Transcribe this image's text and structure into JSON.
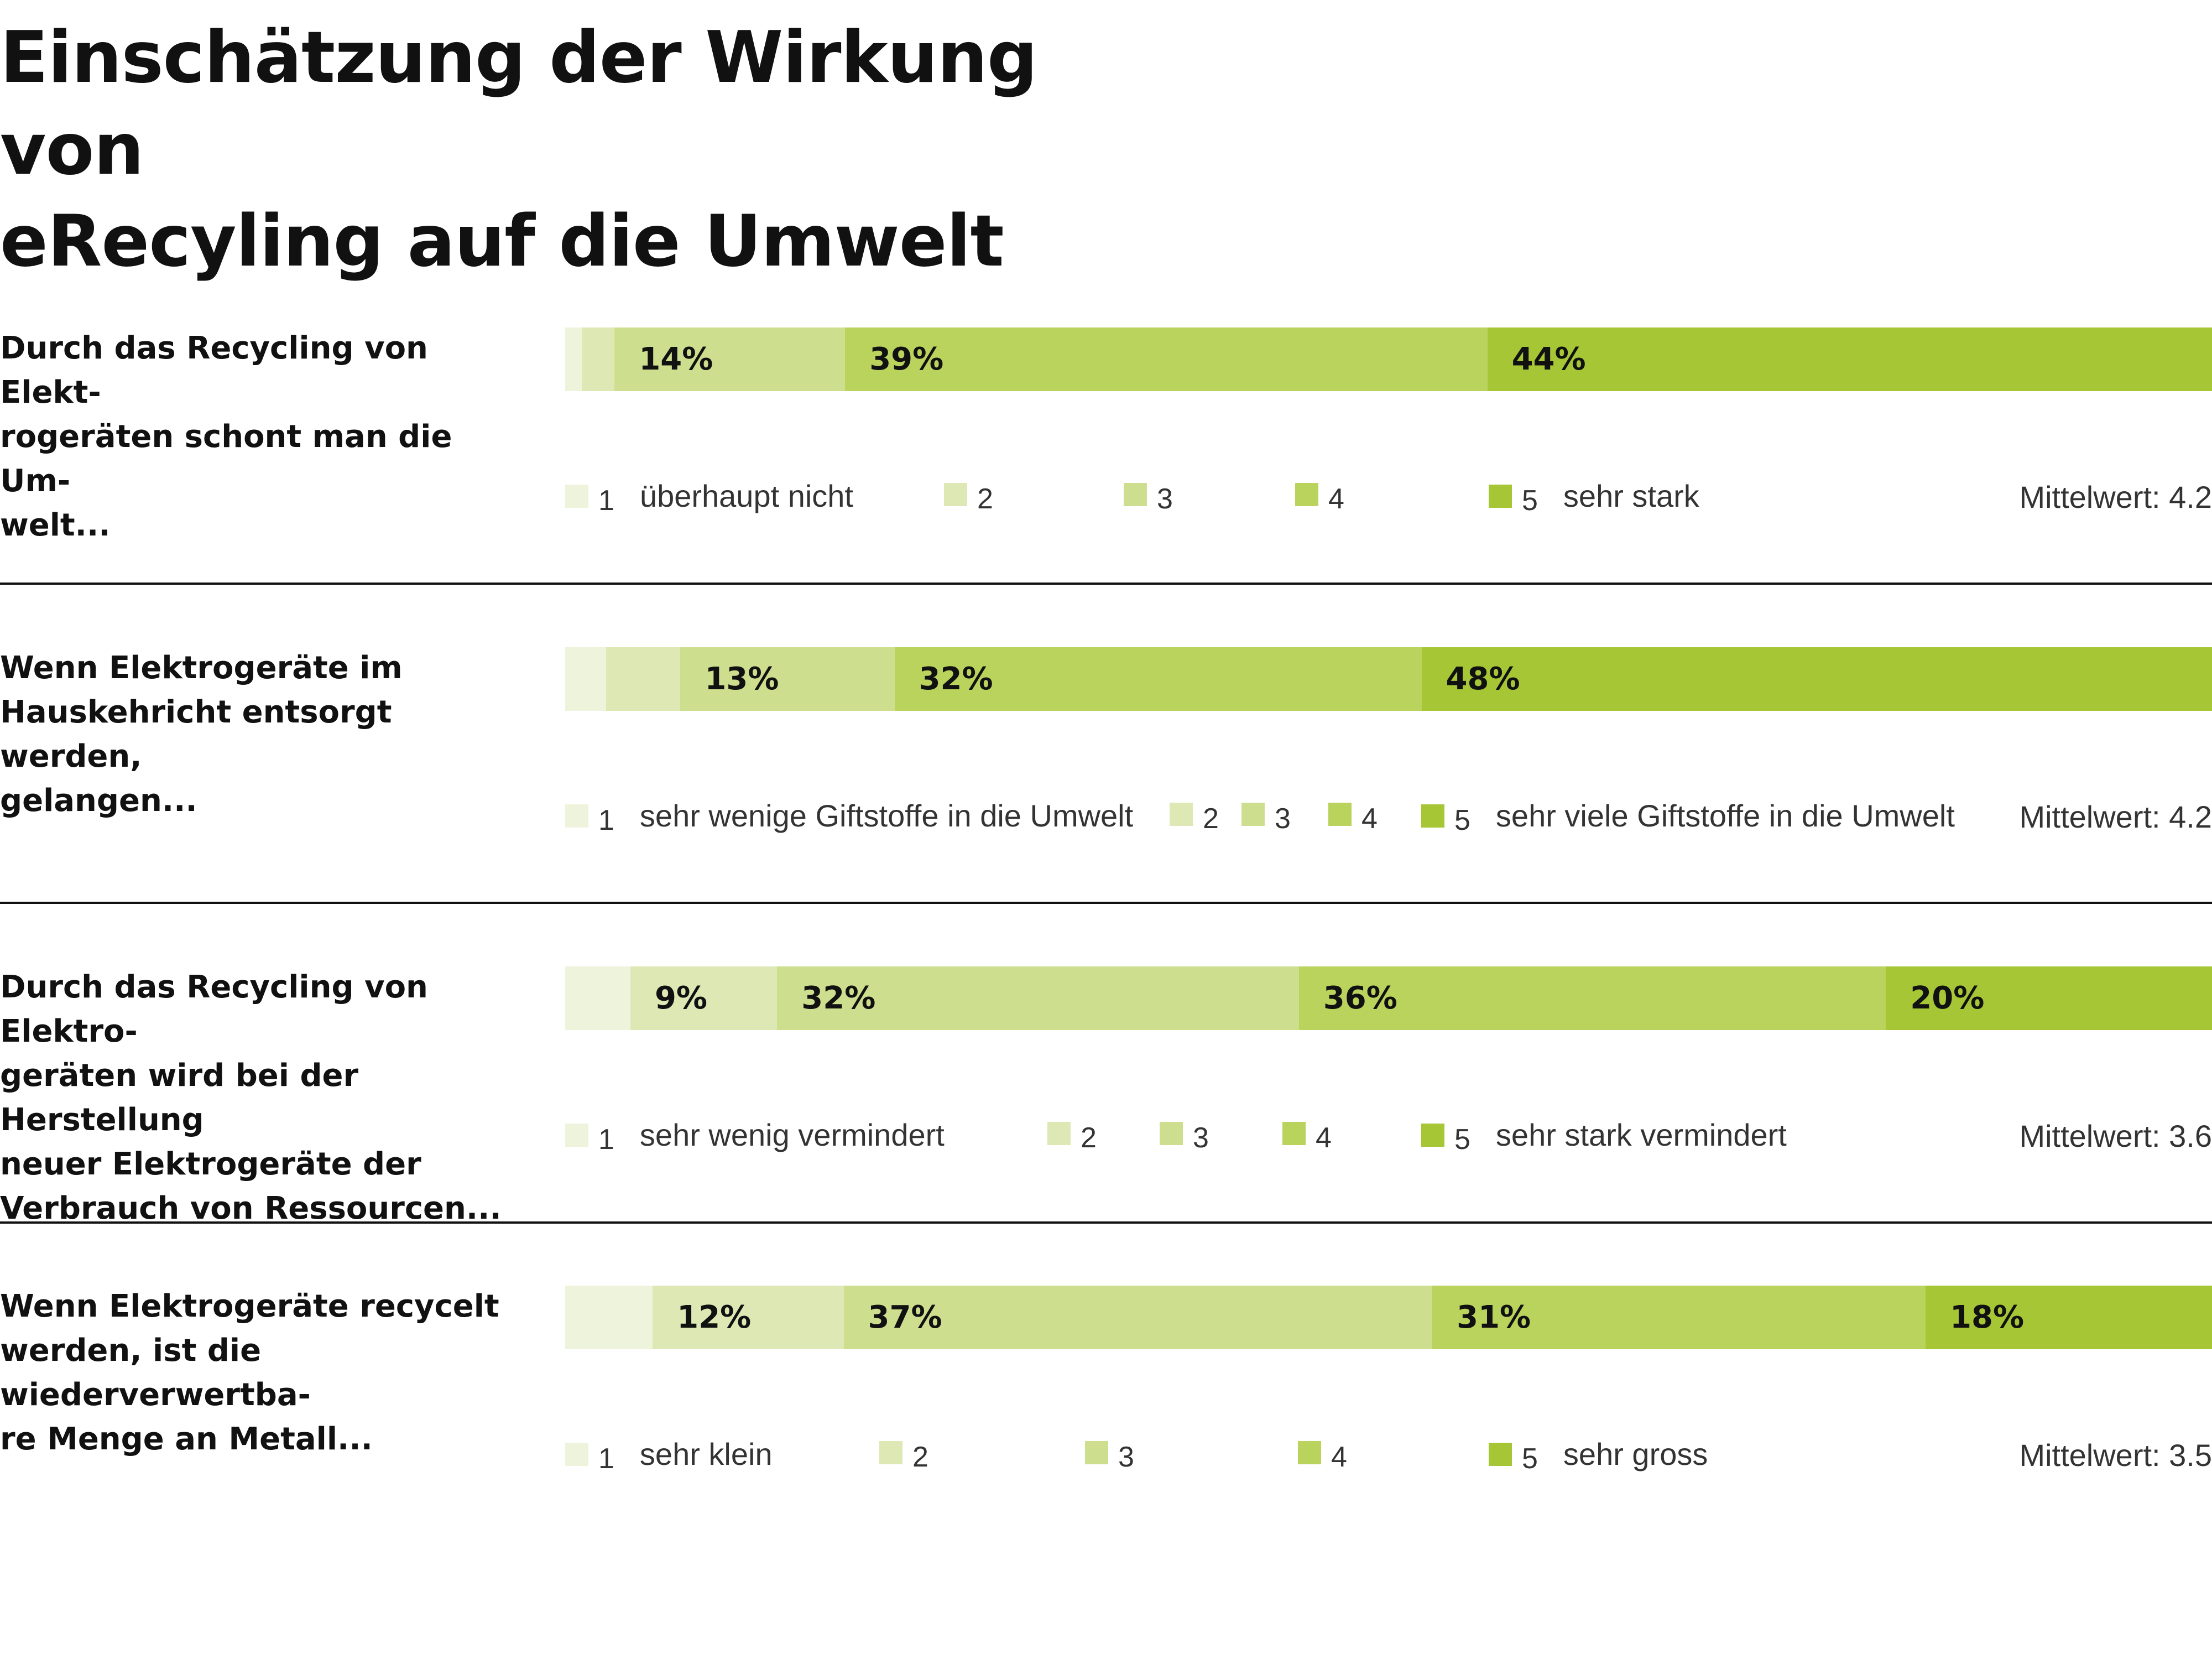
{
  "title_lines": [
    "Einschätzung der Wirkung von",
    "eRecyling auf die Umwelt"
  ],
  "colors": {
    "1": "#eef3dc",
    "2": "#dde8b5",
    "3": "#cddf8e",
    "4": "#b9d35d",
    "5": "#a6c635"
  },
  "chart_data": {
    "type": "bar",
    "orientation": "horizontal-stacked-100",
    "title": "Einschätzung der Wirkung von eRecyling auf die Umwelt",
    "categories": [
      "1",
      "2",
      "3",
      "4",
      "5"
    ],
    "items": [
      {
        "question": "Durch das Recycling von Elektrogeräten schont man die Umwelt...",
        "question_lines": [
          "Durch das Recycling von Elekt-",
          "rogeräten schont man die Um-",
          "welt..."
        ],
        "values": [
          1,
          2,
          14,
          39,
          44
        ],
        "labels": [
          "",
          "",
          "14%",
          "39%",
          "44%"
        ],
        "scale_low": "überhaupt nicht",
        "scale_high": "sehr stark",
        "mean": "Mittelwert: 4.2"
      },
      {
        "question": "Wenn Elektrogeräte im Hauskehricht entsorgt werden, gelangen...",
        "question_lines": [
          "Wenn Elektrogeräte im",
          "Hauskehricht entsorgt werden,",
          "gelangen..."
        ],
        "values": [
          2.5,
          4.5,
          13,
          32,
          48
        ],
        "labels": [
          "",
          "",
          "13%",
          "32%",
          "48%"
        ],
        "scale_low": "sehr wenige Giftstoffe in die Umwelt",
        "scale_high": "sehr viele Giftstoffe in die Umwelt",
        "mean": "Mittelwert: 4.2"
      },
      {
        "question": "Durch das Recycling von Elektrogeräten wird bei der Herstellung neuer Elektrogeräte der Verbrauch von Ressourcen...",
        "question_lines": [
          "Durch das Recycling von Elektro-",
          "geräten wird bei der Herstellung",
          "neuer Elektrogeräte der",
          "Verbrauch von Ressourcen..."
        ],
        "values": [
          4,
          9,
          32,
          36,
          20
        ],
        "labels": [
          "",
          "9%",
          "32%",
          "36%",
          "20%"
        ],
        "scale_low": "sehr wenig vermindert",
        "scale_high": "sehr stark vermindert",
        "mean": "Mittelwert: 3.6"
      },
      {
        "question": "Wenn Elektrogeräte recycelt werden, ist die wiederverwertbare Menge an Metall...",
        "question_lines": [
          "Wenn Elektrogeräte recycelt",
          "werden, ist die wiederverwertba-",
          "re Menge an Metall..."
        ],
        "values": [
          5.5,
          12,
          37,
          31,
          18
        ],
        "labels": [
          "",
          "12%",
          "37%",
          "31%",
          "18%"
        ],
        "scale_low": "sehr klein",
        "scale_high": "sehr gross",
        "mean": "Mittelwert: 3.5"
      }
    ]
  }
}
